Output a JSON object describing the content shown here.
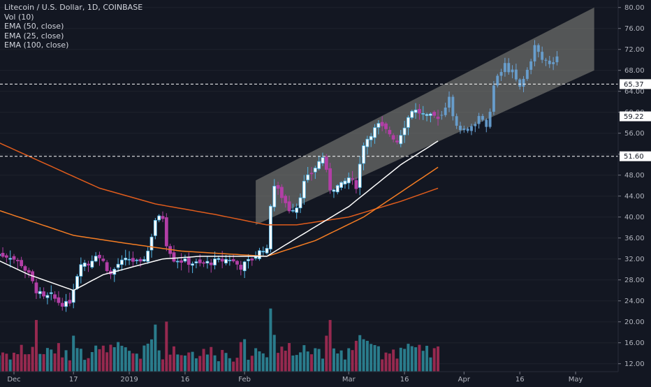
{
  "chart_data": {
    "type": "candlestick",
    "title": "Litecoin / U.S. Dollar, 1D, COINBASE",
    "indicators": [
      "Vol (10)",
      "EMA (50, close)",
      "EMA (25, close)",
      "EMA (100, close)"
    ],
    "x_tick_labels": [
      "Dec",
      "17",
      "2019",
      "16",
      "Feb",
      "Mar",
      "16",
      "Apr",
      "16",
      "May"
    ],
    "y_tick_labels": [
      "80.00",
      "76.00",
      "72.00",
      "68.00",
      "64.00",
      "60.00",
      "56.00",
      "52.00",
      "48.00",
      "44.00",
      "40.00",
      "36.00",
      "32.00",
      "28.00",
      "24.00",
      "20.00",
      "16.00",
      "12.00"
    ],
    "ylim": [
      10.5,
      81.5
    ],
    "horizontal_levels": [
      {
        "label": "65.37",
        "value": 65.37
      },
      {
        "label": "51.60",
        "value": 51.6
      }
    ],
    "last_price_label": "59.22",
    "last_price": 59.22,
    "channel": {
      "start": "2019-02-04",
      "end": "2019-05-06",
      "lower_start": 38.5,
      "upper_start": 47.0,
      "lower_end": 68.0,
      "upper_end": 80.0
    },
    "ohlc_anchor_closes": [
      [
        "2018-11-26",
        33.0
      ],
      [
        "2018-11-30",
        32.5
      ],
      [
        "2018-12-03",
        31.0
      ],
      [
        "2018-12-05",
        29.0
      ],
      [
        "2018-12-07",
        26.0
      ],
      [
        "2018-12-09",
        24.5
      ],
      [
        "2018-12-11",
        25.0
      ],
      [
        "2018-12-13",
        23.8
      ],
      [
        "2018-12-15",
        23.3
      ],
      [
        "2018-12-16",
        24.0
      ],
      [
        "2018-12-17",
        26.5
      ],
      [
        "2018-12-18",
        29.0
      ],
      [
        "2018-12-19",
        31.5
      ],
      [
        "2018-12-21",
        31.0
      ],
      [
        "2018-12-23",
        33.0
      ],
      [
        "2018-12-25",
        31.5
      ],
      [
        "2018-12-27",
        29.0
      ],
      [
        "2018-12-29",
        31.0
      ],
      [
        "2019-01-01",
        32.0
      ],
      [
        "2019-01-04",
        31.0
      ],
      [
        "2019-01-06",
        33.5
      ],
      [
        "2019-01-07",
        36.5
      ],
      [
        "2019-01-08",
        39.5
      ],
      [
        "2019-01-10",
        40.0
      ],
      [
        "2019-01-11",
        35.0
      ],
      [
        "2019-01-13",
        32.0
      ],
      [
        "2019-01-16",
        31.5
      ],
      [
        "2019-01-20",
        31.0
      ],
      [
        "2019-01-24",
        31.5
      ],
      [
        "2019-01-28",
        32.0
      ],
      [
        "2019-01-31",
        30.5
      ],
      [
        "2019-02-03",
        32.0
      ],
      [
        "2019-02-06",
        34.0
      ],
      [
        "2019-02-07",
        33.5
      ],
      [
        "2019-02-08",
        42.5
      ],
      [
        "2019-02-09",
        46.0
      ],
      [
        "2019-02-11",
        44.0
      ],
      [
        "2019-02-13",
        41.5
      ],
      [
        "2019-02-15",
        42.0
      ],
      [
        "2019-02-17",
        46.5
      ],
      [
        "2019-02-20",
        49.5
      ],
      [
        "2019-02-22",
        51.5
      ],
      [
        "2019-02-24",
        45.5
      ],
      [
        "2019-02-27",
        46.0
      ],
      [
        "2019-03-01",
        47.5
      ],
      [
        "2019-03-03",
        46.0
      ],
      [
        "2019-03-05",
        54.0
      ],
      [
        "2019-03-07",
        56.0
      ],
      [
        "2019-03-09",
        57.5
      ],
      [
        "2019-03-12",
        56.0
      ],
      [
        "2019-03-14",
        54.5
      ],
      [
        "2019-03-16",
        57.5
      ],
      [
        "2019-03-18",
        60.5
      ],
      [
        "2019-03-20",
        60.0
      ],
      [
        "2019-03-22",
        59.0
      ],
      [
        "2019-03-24",
        59.2
      ],
      [
        "2019-03-25",
        59.22
      ]
    ],
    "projection_anchor_closes": [
      [
        "2019-03-26",
        59.5
      ],
      [
        "2019-03-28",
        63.5
      ],
      [
        "2019-03-29",
        60.0
      ],
      [
        "2019-03-31",
        56.0
      ],
      [
        "2019-04-03",
        57.5
      ],
      [
        "2019-04-05",
        59.5
      ],
      [
        "2019-04-07",
        56.5
      ],
      [
        "2019-04-09",
        65.0
      ],
      [
        "2019-04-12",
        69.0
      ],
      [
        "2019-04-14",
        67.5
      ],
      [
        "2019-04-16",
        64.5
      ],
      [
        "2019-04-18",
        68.0
      ],
      [
        "2019-04-20",
        72.5
      ],
      [
        "2019-04-22",
        70.0
      ],
      [
        "2019-04-24",
        69.5
      ],
      [
        "2019-04-26",
        70.8
      ]
    ],
    "ema_anchor_values": {
      "ema25": [
        [
          "2018-11-26",
          32.0
        ],
        [
          "2018-12-05",
          29.0
        ],
        [
          "2018-12-17",
          26.0
        ],
        [
          "2018-12-25",
          29.0
        ],
        [
          "2019-01-10",
          32.0
        ],
        [
          "2019-01-20",
          32.5
        ],
        [
          "2019-02-07",
          32.5
        ],
        [
          "2019-02-15",
          36.0
        ],
        [
          "2019-03-01",
          42.0
        ],
        [
          "2019-03-15",
          50.0
        ],
        [
          "2019-03-25",
          54.5
        ]
      ],
      "ema50": [
        [
          "2018-11-26",
          41.5
        ],
        [
          "2018-12-17",
          36.5
        ],
        [
          "2018-12-31",
          35.0
        ],
        [
          "2019-01-15",
          33.5
        ],
        [
          "2019-02-07",
          32.5
        ],
        [
          "2019-02-20",
          35.5
        ],
        [
          "2019-03-05",
          40.0
        ],
        [
          "2019-03-25",
          49.5
        ]
      ],
      "ema100": [
        [
          "2018-11-26",
          54.5
        ],
        [
          "2018-12-10",
          50.0
        ],
        [
          "2018-12-24",
          45.5
        ],
        [
          "2019-01-08",
          42.5
        ],
        [
          "2019-01-24",
          40.5
        ],
        [
          "2019-02-07",
          38.5
        ],
        [
          "2019-02-15",
          38.5
        ],
        [
          "2019-03-01",
          40.0
        ],
        [
          "2019-03-15",
          43.0
        ],
        [
          "2019-03-25",
          45.5
        ]
      ]
    },
    "volume_scale_max": 28.0,
    "colors": {
      "background": "#131722",
      "up_candle": "#53b9ea",
      "down_candle": "#b23fa6",
      "up_candle_solid": "#ffffff",
      "volume_up": "#2a7c8c",
      "volume_down": "#96294f",
      "ema25": "#ffffff",
      "ema50": "#f57d23",
      "ema100": "#e05c1c",
      "channel_fill": "#8a8a84",
      "level_line": "#ffffff",
      "axis_text": "#b2b5be",
      "grid": "#1e222d",
      "projection": "#6aa3d6"
    }
  }
}
